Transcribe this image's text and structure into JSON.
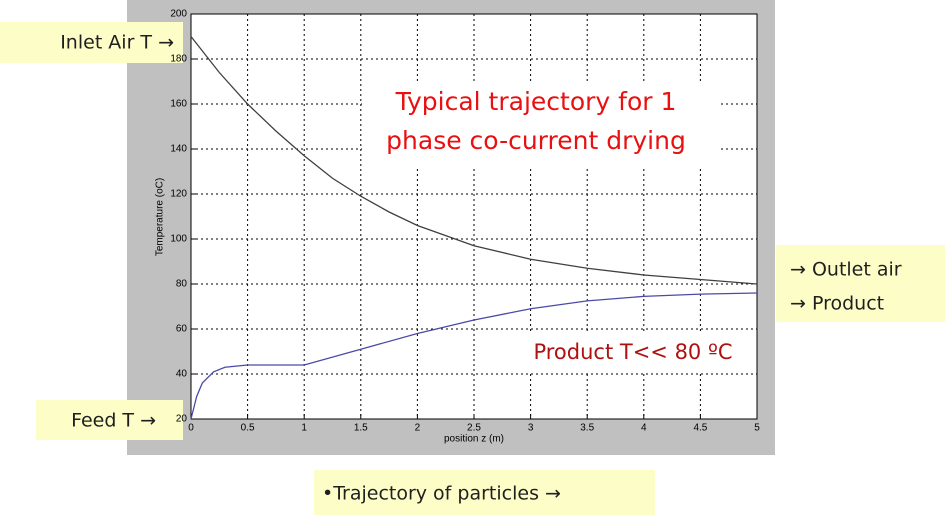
{
  "chart_data": {
    "type": "line",
    "annotation_title": [
      "Typical trajectory for 1",
      "phase co-current drying"
    ],
    "annotation_product": "Product T<< 80  ºC",
    "xlabel": "position z (m)",
    "ylabel": "Temperature (oC)",
    "xlim": [
      0,
      5
    ],
    "xticks": [
      0,
      0.5,
      1,
      1.5,
      2,
      2.5,
      3,
      3.5,
      4,
      4.5,
      5
    ],
    "ylim": [
      20,
      200
    ],
    "yticks": [
      20,
      40,
      60,
      80,
      100,
      120,
      140,
      160,
      180,
      200
    ],
    "grid": true,
    "series": [
      {
        "color": "#404040",
        "x": [
          0,
          0.25,
          0.5,
          0.75,
          1,
          1.25,
          1.5,
          1.75,
          2,
          2.5,
          3,
          3.5,
          4,
          4.5,
          5
        ],
        "values": [
          190,
          174,
          160,
          148,
          137,
          127,
          119,
          112,
          106,
          97,
          91,
          87,
          84,
          82,
          80
        ]
      },
      {
        "color": "#4a4aa8",
        "x": [
          0,
          0.05,
          0.1,
          0.2,
          0.3,
          0.5,
          1,
          1.5,
          2,
          2.5,
          3,
          3.5,
          4,
          4.5,
          5
        ],
        "values": [
          20,
          30,
          36,
          41,
          43,
          44,
          44,
          51,
          58,
          64,
          69,
          72.5,
          74.5,
          75.5,
          76
        ]
      }
    ],
    "side_labels": {
      "inlet": "Inlet Air T →",
      "feed": "Feed T →",
      "outlet": "→ Outlet air",
      "product": "→ Product",
      "trajectory": "•Trajectory of particles →"
    }
  }
}
